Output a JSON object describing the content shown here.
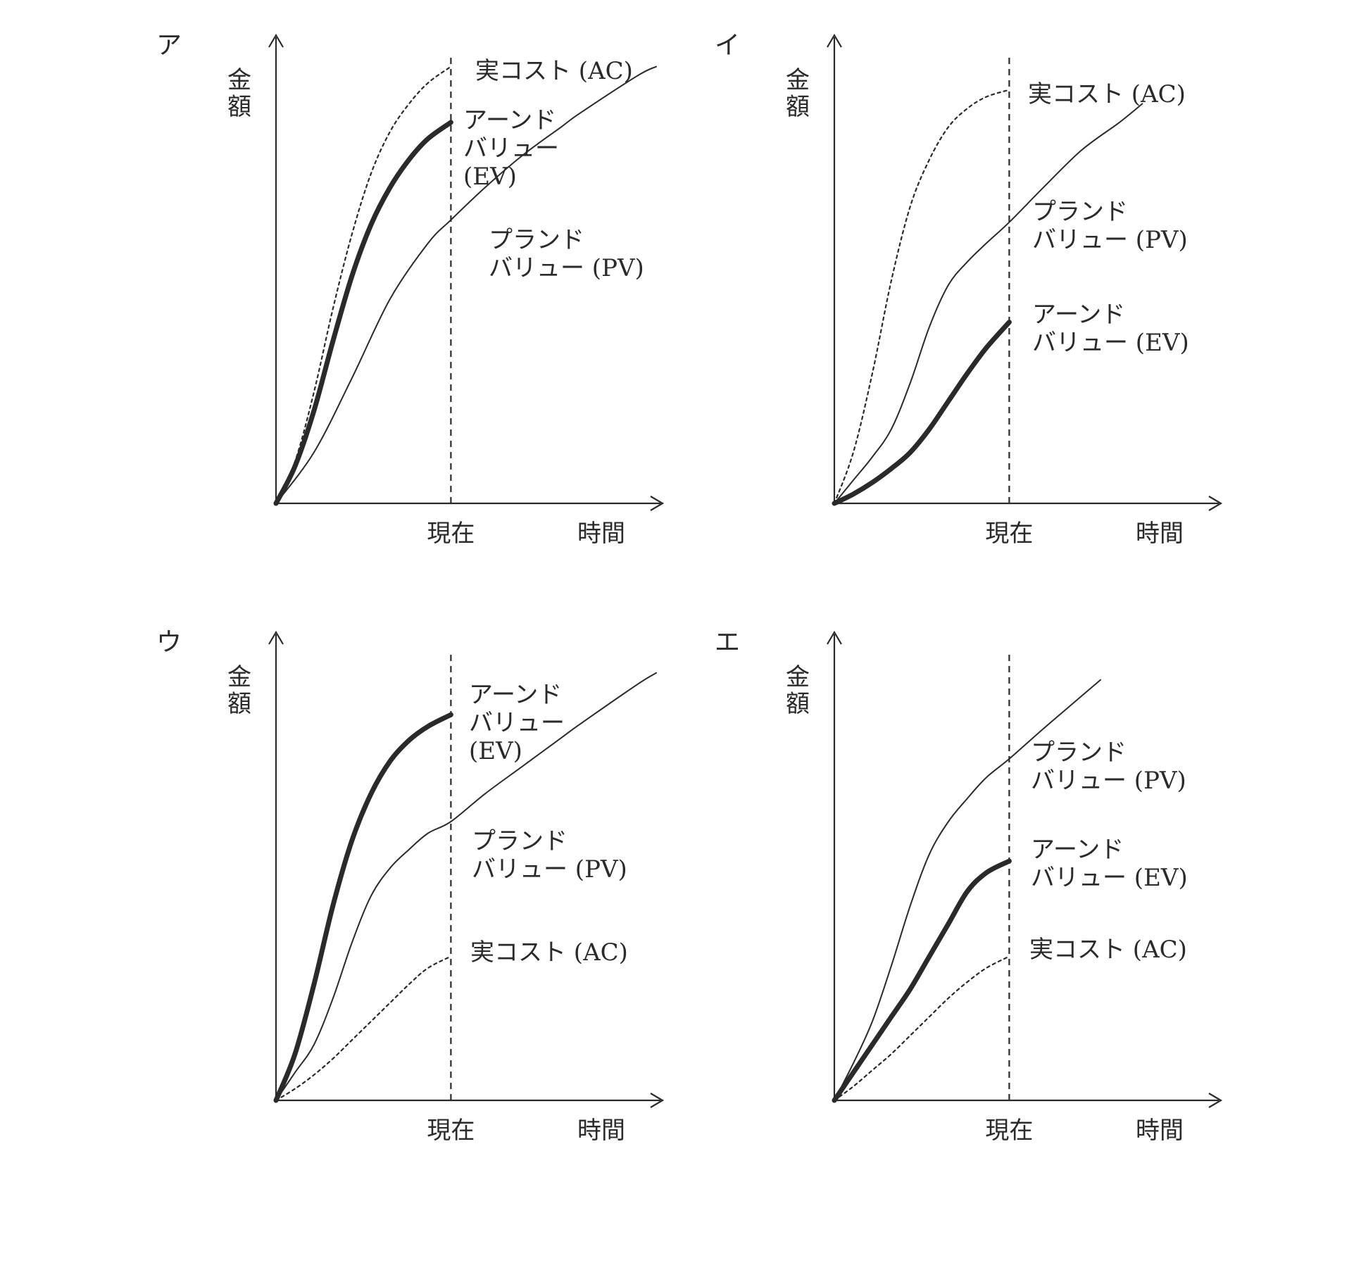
{
  "chart_data": [
    {
      "id": "ア",
      "type": "line",
      "ylabel": "金額",
      "xlabel": "時間",
      "now_label": "現在",
      "x_range": [
        0,
        10
      ],
      "y_range": [
        0,
        10
      ],
      "now_x": 4.6,
      "series": [
        {
          "key": "AC",
          "style": "dotted",
          "label_lines": [
            "実コスト (AC)"
          ],
          "points": [
            [
              0,
              0
            ],
            [
              0.5,
              0.9
            ],
            [
              1,
              2.4
            ],
            [
              1.5,
              4.2
            ],
            [
              2,
              5.8
            ],
            [
              2.5,
              7.1
            ],
            [
              3,
              8.0
            ],
            [
              3.5,
              8.6
            ],
            [
              4,
              9.05
            ],
            [
              4.6,
              9.4
            ]
          ]
        },
        {
          "key": "EV",
          "style": "thick",
          "label_lines": [
            "アーンド",
            "バリュー",
            "(EV)"
          ],
          "points": [
            [
              0,
              0
            ],
            [
              0.5,
              0.8
            ],
            [
              1,
              2.0
            ],
            [
              1.5,
              3.5
            ],
            [
              2,
              4.9
            ],
            [
              2.5,
              6.0
            ],
            [
              3,
              6.8
            ],
            [
              3.5,
              7.4
            ],
            [
              4,
              7.85
            ],
            [
              4.6,
              8.2
            ]
          ]
        },
        {
          "key": "PV",
          "style": "thin",
          "label_lines": [
            "プランド",
            "バリュー (PV)"
          ],
          "points": [
            [
              0,
              0
            ],
            [
              1,
              1.1
            ],
            [
              2,
              2.7
            ],
            [
              3,
              4.4
            ],
            [
              4,
              5.6
            ],
            [
              4.6,
              6.1
            ],
            [
              5.5,
              6.8
            ],
            [
              6.5,
              7.5
            ],
            [
              7.5,
              8.1
            ],
            [
              8,
              8.4
            ],
            [
              9.5,
              9.2
            ],
            [
              10,
              9.4
            ]
          ]
        }
      ]
    },
    {
      "id": "イ",
      "type": "line",
      "ylabel": "金額",
      "xlabel": "時間",
      "now_label": "現在",
      "x_range": [
        0,
        10
      ],
      "y_range": [
        0,
        10
      ],
      "now_x": 4.6,
      "series": [
        {
          "key": "AC",
          "style": "dotted",
          "label_lines": [
            "実コスト (AC)"
          ],
          "points": [
            [
              0,
              0
            ],
            [
              0.5,
              1.1
            ],
            [
              1,
              2.8
            ],
            [
              1.5,
              4.8
            ],
            [
              2,
              6.4
            ],
            [
              2.5,
              7.4
            ],
            [
              3,
              8.1
            ],
            [
              3.5,
              8.5
            ],
            [
              4,
              8.75
            ],
            [
              4.6,
              8.9
            ]
          ]
        },
        {
          "key": "PV",
          "style": "thin",
          "label_lines": [
            "プランド",
            "バリュー (PV)"
          ],
          "points": [
            [
              0,
              0
            ],
            [
              0.5,
              0.5
            ],
            [
              1,
              1.0
            ],
            [
              1.5,
              1.6
            ],
            [
              2,
              2.6
            ],
            [
              2.5,
              3.8
            ],
            [
              3,
              4.7
            ],
            [
              3.5,
              5.2
            ],
            [
              4,
              5.6
            ],
            [
              4.6,
              6.05
            ],
            [
              5.5,
              6.8
            ],
            [
              6.5,
              7.6
            ],
            [
              7.5,
              8.2
            ],
            [
              8.1,
              8.6
            ]
          ]
        },
        {
          "key": "EV",
          "style": "thick",
          "label_lines": [
            "アーンド",
            "バリュー (EV)"
          ],
          "points": [
            [
              0,
              0
            ],
            [
              0.5,
              0.2
            ],
            [
              1,
              0.45
            ],
            [
              1.5,
              0.75
            ],
            [
              2,
              1.1
            ],
            [
              2.5,
              1.6
            ],
            [
              3,
              2.2
            ],
            [
              3.5,
              2.8
            ],
            [
              4,
              3.35
            ],
            [
              4.6,
              3.9
            ]
          ]
        }
      ]
    },
    {
      "id": "ウ",
      "type": "line",
      "ylabel": "金額",
      "xlabel": "時間",
      "now_label": "現在",
      "x_range": [
        0,
        10
      ],
      "y_range": [
        0,
        10
      ],
      "now_x": 4.6,
      "series": [
        {
          "key": "EV",
          "style": "thick",
          "label_lines": [
            "アーンド",
            "バリュー",
            "(EV)"
          ],
          "points": [
            [
              0,
              0
            ],
            [
              0.5,
              1.0
            ],
            [
              1,
              2.5
            ],
            [
              1.5,
              4.2
            ],
            [
              2,
              5.6
            ],
            [
              2.5,
              6.6
            ],
            [
              3,
              7.3
            ],
            [
              3.5,
              7.75
            ],
            [
              4,
              8.05
            ],
            [
              4.6,
              8.3
            ]
          ]
        },
        {
          "key": "PV",
          "style": "thin",
          "label_lines": [
            "プランド",
            "バリュー (PV)"
          ],
          "points": [
            [
              0,
              0
            ],
            [
              0.5,
              0.6
            ],
            [
              1,
              1.2
            ],
            [
              1.5,
              2.2
            ],
            [
              2,
              3.4
            ],
            [
              2.5,
              4.4
            ],
            [
              3,
              5.0
            ],
            [
              3.5,
              5.4
            ],
            [
              4,
              5.75
            ],
            [
              4.6,
              6.0
            ],
            [
              5.5,
              6.6
            ],
            [
              6.5,
              7.2
            ],
            [
              7.5,
              7.8
            ],
            [
              8,
              8.1
            ],
            [
              9.5,
              8.95
            ],
            [
              10,
              9.2
            ]
          ]
        },
        {
          "key": "AC",
          "style": "dotted",
          "label_lines": [
            "実コスト (AC)"
          ],
          "points": [
            [
              0,
              0
            ],
            [
              0.5,
              0.25
            ],
            [
              1,
              0.55
            ],
            [
              1.5,
              0.9
            ],
            [
              2,
              1.3
            ],
            [
              2.5,
              1.7
            ],
            [
              3,
              2.1
            ],
            [
              3.5,
              2.5
            ],
            [
              4,
              2.85
            ],
            [
              4.6,
              3.1
            ]
          ]
        }
      ]
    },
    {
      "id": "エ",
      "type": "line",
      "ylabel": "金額",
      "xlabel": "時間",
      "now_label": "現在",
      "x_range": [
        0,
        10
      ],
      "y_range": [
        0,
        10
      ],
      "now_x": 4.6,
      "series": [
        {
          "key": "PV",
          "style": "thin",
          "label_lines": [
            "プランド",
            "バリュー (PV)"
          ],
          "points": [
            [
              0,
              0
            ],
            [
              0.5,
              0.8
            ],
            [
              1,
              1.7
            ],
            [
              1.5,
              2.9
            ],
            [
              2,
              4.2
            ],
            [
              2.5,
              5.3
            ],
            [
              3,
              6.0
            ],
            [
              3.5,
              6.5
            ],
            [
              4,
              6.95
            ],
            [
              4.6,
              7.35
            ],
            [
              5.5,
              8.0
            ],
            [
              6.5,
              8.7
            ],
            [
              7,
              9.05
            ]
          ]
        },
        {
          "key": "EV",
          "style": "thick",
          "label_lines": [
            "アーンド",
            "バリュー (EV)"
          ],
          "points": [
            [
              0,
              0
            ],
            [
              0.5,
              0.6
            ],
            [
              1,
              1.2
            ],
            [
              1.5,
              1.8
            ],
            [
              2,
              2.4
            ],
            [
              2.5,
              3.1
            ],
            [
              3,
              3.8
            ],
            [
              3.5,
              4.5
            ],
            [
              4,
              4.9
            ],
            [
              4.6,
              5.15
            ]
          ]
        },
        {
          "key": "AC",
          "style": "dotted",
          "label_lines": [
            "実コスト (AC)"
          ],
          "points": [
            [
              0,
              0
            ],
            [
              0.5,
              0.3
            ],
            [
              1,
              0.65
            ],
            [
              1.5,
              1.0
            ],
            [
              2,
              1.4
            ],
            [
              2.5,
              1.8
            ],
            [
              3,
              2.2
            ],
            [
              3.5,
              2.55
            ],
            [
              4,
              2.85
            ],
            [
              4.6,
              3.1
            ]
          ]
        }
      ]
    }
  ]
}
